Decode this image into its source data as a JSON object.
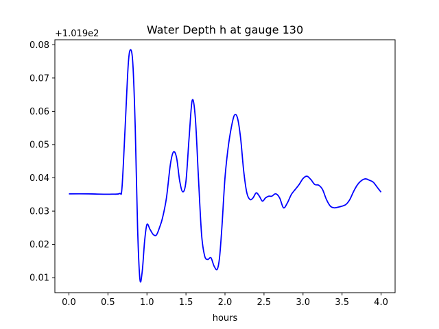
{
  "chart_data": {
    "type": "line",
    "title": "Water Depth h at gauge 130",
    "xlabel": "hours",
    "ylabel": "",
    "offset_text": "+1.019e2",
    "xlim": [
      -0.18,
      4.18
    ],
    "ylim": [
      0.0055,
      0.0815
    ],
    "x_ticks": [
      0.0,
      0.5,
      1.0,
      1.5,
      2.0,
      2.5,
      3.0,
      3.5,
      4.0
    ],
    "x_tick_labels": [
      "0.0",
      "0.5",
      "1.0",
      "1.5",
      "2.0",
      "2.5",
      "3.0",
      "3.5",
      "4.0"
    ],
    "y_ticks": [
      0.01,
      0.02,
      0.03,
      0.04,
      0.05,
      0.06,
      0.07,
      0.08
    ],
    "y_tick_labels": [
      "0.01",
      "0.02",
      "0.03",
      "0.04",
      "0.05",
      "0.06",
      "0.07",
      "0.08"
    ],
    "grid": false,
    "series": [
      {
        "color": "#0000ff",
        "x": [
          0.0,
          0.25,
          0.4,
          0.55,
          0.65,
          0.68,
          0.72,
          0.76,
          0.79,
          0.82,
          0.85,
          0.88,
          0.91,
          0.94,
          0.97,
          1.0,
          1.04,
          1.08,
          1.12,
          1.16,
          1.2,
          1.25,
          1.3,
          1.34,
          1.38,
          1.42,
          1.46,
          1.5,
          1.54,
          1.58,
          1.62,
          1.66,
          1.7,
          1.74,
          1.78,
          1.82,
          1.86,
          1.9,
          1.93,
          1.96,
          2.0,
          2.04,
          2.08,
          2.12,
          2.16,
          2.2,
          2.24,
          2.28,
          2.32,
          2.36,
          2.4,
          2.44,
          2.48,
          2.52,
          2.56,
          2.6,
          2.65,
          2.7,
          2.75,
          2.8,
          2.85,
          2.9,
          2.95,
          3.0,
          3.05,
          3.1,
          3.15,
          3.2,
          3.25,
          3.3,
          3.35,
          3.4,
          3.45,
          3.5,
          3.55,
          3.6,
          3.65,
          3.7,
          3.75,
          3.8,
          3.85,
          3.9,
          3.95,
          4.0
        ],
        "y": [
          0.0352,
          0.0352,
          0.0351,
          0.0351,
          0.0353,
          0.037,
          0.055,
          0.074,
          0.0785,
          0.074,
          0.055,
          0.025,
          0.0095,
          0.012,
          0.021,
          0.026,
          0.0245,
          0.023,
          0.0228,
          0.025,
          0.028,
          0.034,
          0.044,
          0.0478,
          0.046,
          0.039,
          0.0358,
          0.039,
          0.052,
          0.0633,
          0.058,
          0.04,
          0.023,
          0.0165,
          0.0155,
          0.016,
          0.0135,
          0.0125,
          0.016,
          0.025,
          0.04,
          0.049,
          0.055,
          0.0588,
          0.058,
          0.052,
          0.042,
          0.0355,
          0.0335,
          0.034,
          0.0355,
          0.0345,
          0.033,
          0.034,
          0.0345,
          0.0345,
          0.0352,
          0.034,
          0.031,
          0.0325,
          0.035,
          0.0365,
          0.038,
          0.0398,
          0.0405,
          0.0395,
          0.038,
          0.0378,
          0.0365,
          0.0335,
          0.0315,
          0.031,
          0.0312,
          0.0315,
          0.032,
          0.0335,
          0.036,
          0.038,
          0.0392,
          0.0397,
          0.0393,
          0.0387,
          0.0372,
          0.0357
        ]
      }
    ]
  }
}
